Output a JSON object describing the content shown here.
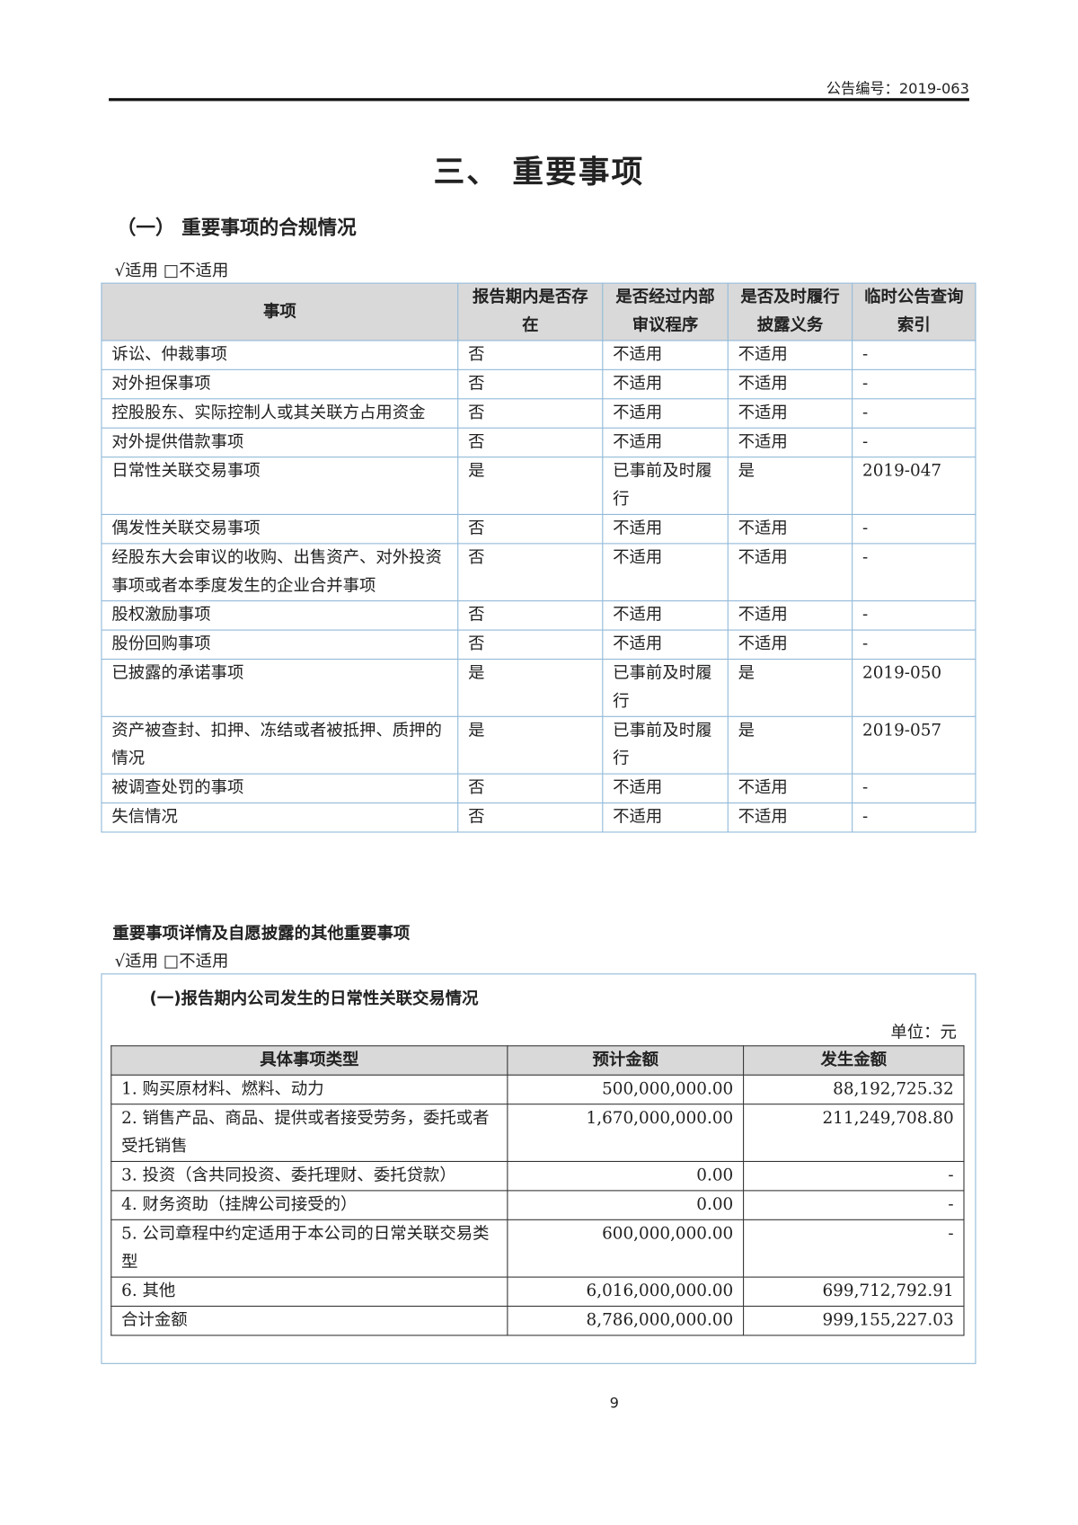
{
  "header": {
    "notice_no": "公告编号：2019-063"
  },
  "title": "三、 重要事项",
  "section1": {
    "heading": "（一）  重要事项的合规情况",
    "applicability": "√适用 □不适用",
    "columns": [
      "事项",
      "报告期内是否存在",
      "是否经过内部审议程序",
      "是否及时履行披露义务",
      "临时公告查询索引"
    ],
    "rows": [
      [
        "诉讼、仲裁事项",
        "否",
        "不适用",
        "不适用",
        "-"
      ],
      [
        "对外担保事项",
        "否",
        "不适用",
        "不适用",
        "-"
      ],
      [
        "控股股东、实际控制人或其关联方占用资金",
        "否",
        "不适用",
        "不适用",
        "-"
      ],
      [
        "对外提供借款事项",
        "否",
        "不适用",
        "不适用",
        "-"
      ],
      [
        "日常性关联交易事项",
        "是",
        "已事前及时履行",
        "是",
        "2019-047"
      ],
      [
        "偶发性关联交易事项",
        "否",
        "不适用",
        "不适用",
        "-"
      ],
      [
        "经股东大会审议的收购、出售资产、对外投资事项或者本季度发生的企业合并事项",
        "否",
        "不适用",
        "不适用",
        "-"
      ],
      [
        "股权激励事项",
        "否",
        "不适用",
        "不适用",
        "-"
      ],
      [
        "股份回购事项",
        "否",
        "不适用",
        "不适用",
        "-"
      ],
      [
        "已披露的承诺事项",
        "是",
        "已事前及时履行",
        "是",
        "2019-050"
      ],
      [
        "资产被查封、扣押、冻结或者被抵押、质押的情况",
        "是",
        "已事前及时履行",
        "是",
        "2019-057"
      ],
      [
        "被调查处罚的事项",
        "否",
        "不适用",
        "不适用",
        "-"
      ],
      [
        "失信情况",
        "否",
        "不适用",
        "不适用",
        "-"
      ]
    ]
  },
  "section2": {
    "heading": "重要事项详情及自愿披露的其他重要事项",
    "applicability": "√适用 □不适用",
    "box_title": "(一)报告期内公司发生的日常性关联交易情况",
    "unit": "单位：元",
    "columns": [
      "具体事项类型",
      "预计金额",
      "发生金额"
    ],
    "rows": [
      [
        "1. 购买原材料、燃料、动力",
        "500,000,000.00",
        "88,192,725.32"
      ],
      [
        "2. 销售产品、商品、提供或者接受劳务，委托或者受托销售",
        "1,670,000,000.00",
        "211,249,708.80"
      ],
      [
        "3. 投资（含共同投资、委托理财、委托贷款）",
        "0.00",
        "-"
      ],
      [
        "4. 财务资助（挂牌公司接受的）",
        "0.00",
        "-"
      ],
      [
        "5. 公司章程中约定适用于本公司的日常关联交易类型",
        "600,000,000.00",
        "-"
      ],
      [
        "6. 其他",
        "6,016,000,000.00",
        "699,712,792.91"
      ],
      [
        "合计金额",
        "8,786,000,000.00",
        "999,155,227.03"
      ]
    ]
  },
  "page_number": "9",
  "colors": {
    "table_border": "#8fb8d8",
    "header_bg": "#d9d9d9"
  }
}
